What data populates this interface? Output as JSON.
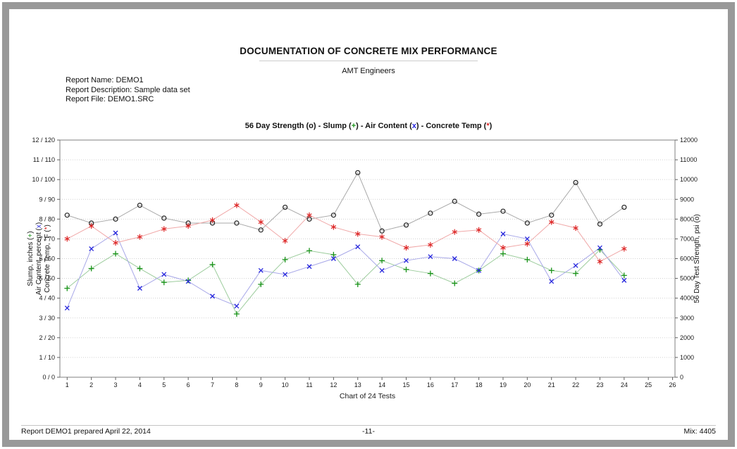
{
  "page": {
    "title": "DOCUMENTATION OF CONCRETE MIX PERFORMANCE",
    "subtitle": "AMT Engineers",
    "report_info": [
      "Report Name: DEMO1",
      "Report Description: Sample data set",
      "Report File: DEMO1.SRC"
    ],
    "footer": {
      "left": "Report DEMO1 prepared April 22, 2014",
      "center": "-11-",
      "right": "Mix: 4405"
    }
  },
  "colors": {
    "strength": "#303030",
    "slump_green": "#1a941a",
    "air_blue": "#2525dd",
    "temp_red": "#dd2525"
  },
  "chart_data": {
    "type": "line",
    "title_segments": [
      {
        "t": "56 Day Strength (o) - Slump (",
        "c": "#111111"
      },
      {
        "t": "+",
        "c": "#1a941a"
      },
      {
        "t": ") - Air Content (",
        "c": "#111111"
      },
      {
        "t": "x",
        "c": "#2525dd"
      },
      {
        "t": ") - Concrete Temp (",
        "c": "#111111"
      },
      {
        "t": "*",
        "c": "#dd2525"
      },
      {
        "t": ")",
        "c": "#111111"
      }
    ],
    "x_label": "Chart of 24 Tests",
    "x_ticks": [
      "1",
      "2",
      "3",
      "4",
      "5",
      "6",
      "7",
      "8",
      "9",
      "10",
      "11",
      "12",
      "13",
      "14",
      "15",
      "16",
      "17",
      "18",
      "19",
      "20",
      "21",
      "22",
      "23",
      "24",
      "25",
      "26"
    ],
    "x": [
      1,
      2,
      3,
      4,
      5,
      6,
      7,
      8,
      9,
      10,
      11,
      12,
      13,
      14,
      15,
      16,
      17,
      18,
      19,
      20,
      21,
      22,
      23,
      24
    ],
    "left_axis": {
      "range": [
        0,
        12
      ],
      "tick_labels": [
        "0 / 0",
        "1 / 10",
        "2 / 20",
        "3 / 30",
        "4 / 40",
        "5 / 50",
        "6 / 60",
        "7 / 70",
        "8 / 80",
        "9 / 90",
        "10 / 100",
        "11 / 110",
        "12 / 120"
      ],
      "title_lines": [
        [
          {
            "t": "Slump, inches (",
            "c": "#111111"
          },
          {
            "t": "+",
            "c": "#1a941a"
          },
          {
            "t": ")",
            "c": "#111111"
          }
        ],
        [
          {
            "t": "Air Content, percent (",
            "c": "#111111"
          },
          {
            "t": "x",
            "c": "#2525dd"
          },
          {
            "t": ")",
            "c": "#111111"
          }
        ],
        [
          {
            "t": "Concrete Temp, °F (",
            "c": "#111111"
          },
          {
            "t": "*",
            "c": "#dd2525"
          },
          {
            "t": ")",
            "c": "#111111"
          }
        ]
      ]
    },
    "right_axis": {
      "range": [
        0,
        12000
      ],
      "tick_labels": [
        "0",
        "1000",
        "2000",
        "3000",
        "4000",
        "5000",
        "6000",
        "7000",
        "8000",
        "9000",
        "10000",
        "11000",
        "12000"
      ],
      "title_segments": [
        {
          "t": "56 Day Test Strength, psi (o)",
          "c": "#111111"
        }
      ]
    },
    "grid": "horizontal-dotted",
    "legend_position": "in-title",
    "series": [
      {
        "name": "56 Day Strength",
        "unit": "psi",
        "marker": "o",
        "marker_color": "#303030",
        "line_color": "#a8a8a8",
        "plot_scale": 1000,
        "values": [
          8200,
          7800,
          8000,
          8700,
          8050,
          7800,
          7800,
          7800,
          7450,
          8600,
          8000,
          8200,
          10350,
          7400,
          7700,
          8300,
          8900,
          8250,
          8400,
          7800,
          8200,
          9850,
          7750,
          8600
        ]
      },
      {
        "name": "Slump",
        "unit": "inches",
        "marker": "+",
        "marker_color": "#1a941a",
        "line_color": "#9ccc9c",
        "plot_scale": 1,
        "values": [
          4.5,
          5.5,
          6.25,
          5.5,
          4.8,
          4.9,
          5.7,
          3.2,
          4.7,
          5.95,
          6.4,
          6.2,
          4.7,
          5.9,
          5.45,
          5.25,
          4.75,
          5.4,
          6.25,
          5.95,
          5.4,
          5.25,
          6.45,
          5.15
        ]
      },
      {
        "name": "Air Content",
        "unit": "percent",
        "marker": "x",
        "marker_color": "#2525dd",
        "line_color": "#a8a8e8",
        "plot_scale": 1,
        "values": [
          3.5,
          6.5,
          7.3,
          4.5,
          5.2,
          4.85,
          4.1,
          3.6,
          5.4,
          5.2,
          5.6,
          6.0,
          6.6,
          5.4,
          5.9,
          6.1,
          6.0,
          5.4,
          7.25,
          7.0,
          4.85,
          5.65,
          6.55,
          4.9
        ]
      },
      {
        "name": "Concrete Temp",
        "unit": "°F",
        "marker": "*",
        "marker_color": "#dd2525",
        "line_color": "#f0a8a8",
        "plot_scale": 10,
        "values": [
          70,
          76.5,
          68,
          71,
          75,
          76.5,
          79.5,
          87,
          78.5,
          69,
          82,
          76,
          72.5,
          71,
          65.5,
          67,
          73.5,
          74.5,
          65.5,
          67.5,
          78.5,
          75.5,
          58.5,
          65
        ]
      }
    ]
  }
}
